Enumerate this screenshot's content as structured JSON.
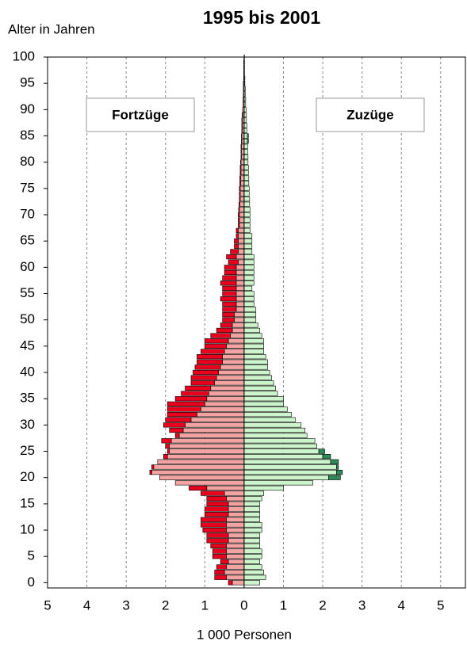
{
  "chart_data": {
    "type": "pyramid",
    "title": "1995 bis 2001",
    "y_label": "Alter in Jahren",
    "x_label": "1 000 Personen",
    "xlim": [
      -5,
      5.65
    ],
    "xticks": [
      {
        "value": -5,
        "label": "5"
      },
      {
        "value": -4,
        "label": "4"
      },
      {
        "value": -3,
        "label": "3"
      },
      {
        "value": -2,
        "label": "2"
      },
      {
        "value": -1,
        "label": "1"
      },
      0,
      1,
      2,
      3,
      4,
      5
    ],
    "ylim": [
      -1,
      100
    ],
    "yticks": [
      0,
      5,
      10,
      15,
      20,
      25,
      30,
      35,
      40,
      45,
      50,
      55,
      60,
      65,
      70,
      75,
      80,
      85,
      90,
      95,
      100
    ],
    "grid": true,
    "series": [
      {
        "name": "Fortzüge",
        "side": "left",
        "segments": [
          {
            "color": "#f4a3a3",
            "values": [
              0.3,
              0.45,
              0.5,
              0.45,
              0.4,
              0.45,
              0.45,
              0.45,
              0.4,
              0.4,
              0.45,
              0.45,
              0.45,
              0.4,
              0.4,
              0.4,
              0.45,
              0.5,
              0.95,
              1.75,
              2.15,
              2.35,
              2.3,
              2.2,
              1.95,
              1.9,
              1.9,
              1.85,
              1.65,
              1.55,
              1.5,
              1.35,
              1.2,
              1.1,
              1.0,
              0.95,
              0.9,
              0.85,
              0.75,
              0.7,
              0.65,
              0.6,
              0.55,
              0.55,
              0.5,
              0.45,
              0.4,
              0.35,
              0.3,
              0.3,
              0.25,
              0.25,
              0.2,
              0.2,
              0.2,
              0.2,
              0.2,
              0.2,
              0.2,
              0.2,
              0.2,
              0.15,
              0.2,
              0.15,
              0.15,
              0.15,
              0.15,
              0.15,
              0.12,
              0.12,
              0.12,
              0.12,
              0.11,
              0.1,
              0.1,
              0.1,
              0.09,
              0.09,
              0.08,
              0.08,
              0.08,
              0.07,
              0.07,
              0.07,
              0.06,
              0.06,
              0.05,
              0.05,
              0.05,
              0.04,
              0.04,
              0.03,
              0.03,
              0.02,
              0.02,
              0.02,
              0.01,
              0.01,
              0.01,
              0.01,
              0
            ]
          },
          {
            "color": "#e8001c",
            "values": [
              0.1,
              0.3,
              0.25,
              0.25,
              0.2,
              0.35,
              0.35,
              0.4,
              0.55,
              0.55,
              0.6,
              0.65,
              0.65,
              0.6,
              0.6,
              0.55,
              0.5,
              0.6,
              0.45,
              0,
              0,
              0.05,
              0.05,
              0,
              0.1,
              0.05,
              0.1,
              0.25,
              0.1,
              0.35,
              0.55,
              0.65,
              0.75,
              0.85,
              0.95,
              0.8,
              0.7,
              0.65,
              0.6,
              0.65,
              0.65,
              0.65,
              0.65,
              0.65,
              0.6,
              0.55,
              0.6,
              0.5,
              0.4,
              0.3,
              0.3,
              0.3,
              0.35,
              0.35,
              0.4,
              0.35,
              0.35,
              0.4,
              0.35,
              0.3,
              0.3,
              0.25,
              0.25,
              0.2,
              0.1,
              0.1,
              0.05,
              0.05,
              0.03,
              0.03,
              0.03,
              0.02,
              0.02,
              0.02,
              0.02,
              0.02,
              0.02,
              0.02,
              0.02,
              0.02,
              0.01,
              0.01,
              0.01,
              0.01,
              0.01,
              0.01,
              0.01,
              0.01,
              0.01,
              0.01,
              0,
              0,
              0,
              0,
              0,
              0,
              0,
              0,
              0,
              0,
              0
            ]
          }
        ]
      },
      {
        "name": "Zuzüge",
        "side": "right",
        "segments": [
          {
            "color": "#ccf5cc",
            "values": [
              0.4,
              0.55,
              0.5,
              0.45,
              0.4,
              0.45,
              0.45,
              0.4,
              0.4,
              0.4,
              0.45,
              0.45,
              0.4,
              0.4,
              0.4,
              0.4,
              0.45,
              0.5,
              1.0,
              1.75,
              2.15,
              2.35,
              2.35,
              2.2,
              2.0,
              1.9,
              1.85,
              1.8,
              1.6,
              1.55,
              1.45,
              1.3,
              1.2,
              1.1,
              1.0,
              1.0,
              0.85,
              0.8,
              0.75,
              0.7,
              0.65,
              0.6,
              0.6,
              0.55,
              0.5,
              0.5,
              0.5,
              0.45,
              0.4,
              0.35,
              0.3,
              0.3,
              0.3,
              0.25,
              0.25,
              0.25,
              0.2,
              0.25,
              0.25,
              0.25,
              0.25,
              0.25,
              0.25,
              0.2,
              0.2,
              0.2,
              0.2,
              0.15,
              0.15,
              0.15,
              0.15,
              0.15,
              0.14,
              0.14,
              0.13,
              0.13,
              0.12,
              0.12,
              0.11,
              0.11,
              0.1,
              0.1,
              0.09,
              0.09,
              0.08,
              0.08,
              0.07,
              0.07,
              0.06,
              0.06,
              0.05,
              0.04,
              0.04,
              0.03,
              0.03,
              0.02,
              0.02,
              0.01,
              0.01,
              0.01,
              0.01
            ]
          },
          {
            "color": "#2e8b57",
            "values": [
              0,
              0,
              0,
              0,
              0,
              0,
              0,
              0,
              0,
              0,
              0,
              0,
              0,
              0,
              0,
              0,
              0,
              0,
              0,
              0,
              0.3,
              0.15,
              0.05,
              0.2,
              0.2,
              0.15,
              0,
              0,
              0,
              0,
              0,
              0,
              0,
              0,
              0,
              0,
              0,
              0,
              0,
              0,
              0,
              0,
              0,
              0,
              0,
              0,
              0,
              0,
              0,
              0,
              0,
              0,
              0,
              0,
              0,
              0,
              0,
              0,
              0,
              0,
              0,
              0,
              0,
              0,
              0,
              0,
              0,
              0,
              0,
              0,
              0,
              0,
              0,
              0,
              0,
              0,
              0,
              0,
              0,
              0,
              0,
              0,
              0,
              0,
              0.03,
              0.03,
              0,
              0,
              0,
              0,
              0,
              0,
              0,
              0,
              0,
              0,
              0,
              0,
              0,
              0,
              0
            ]
          }
        ]
      }
    ]
  }
}
